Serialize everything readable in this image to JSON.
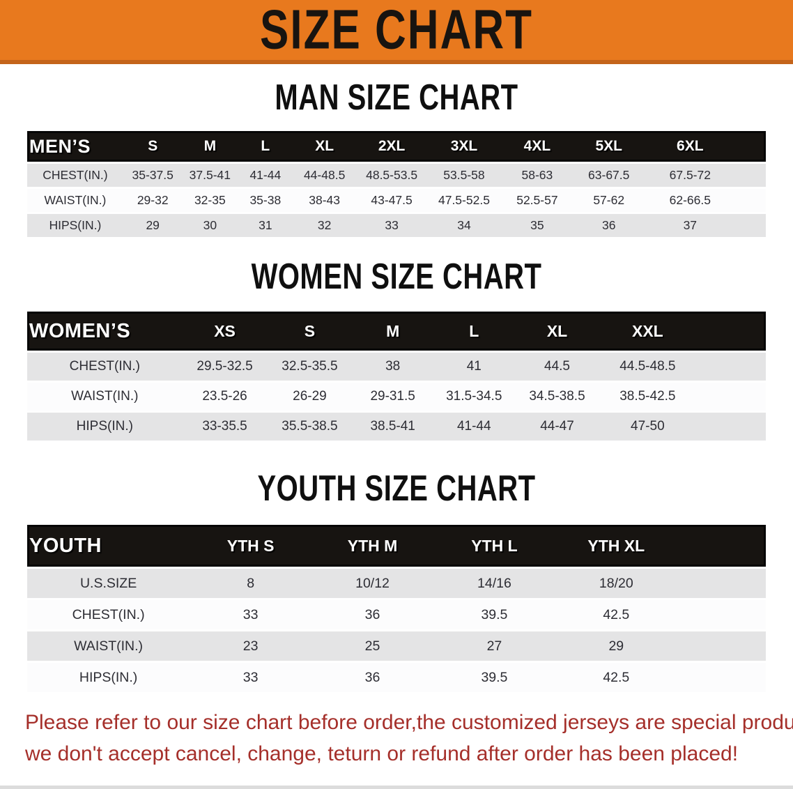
{
  "banner": {
    "title": "SIZE CHART"
  },
  "colors": {
    "banner_orange": "#e8791e",
    "banner_bottom_edge": "#c4641a",
    "table_header_black": "#171411",
    "row_gray": "#e4e4e5",
    "row_white": "#fcfcfd",
    "disclaimer_red": "#a52f2a"
  },
  "sections": [
    {
      "id": "men",
      "title": "MAN SIZE CHART",
      "header_label": "MEN’S",
      "columns": [
        "S",
        "M",
        "L",
        "XL",
        "2XL",
        "3XL",
        "4XL",
        "5XL",
        "6XL"
      ],
      "rows": [
        {
          "label": "CHEST(IN.)",
          "values": [
            "35-37.5",
            "37.5-41",
            "41-44",
            "44-48.5",
            "48.5-53.5",
            "53.5-58",
            "58-63",
            "63-67.5",
            "67.5-72"
          ]
        },
        {
          "label": "WAIST(IN.)",
          "values": [
            "29-32",
            "32-35",
            "35-38",
            "38-43",
            "43-47.5",
            "47.5-52.5",
            "52.5-57",
            "57-62",
            "62-66.5"
          ]
        },
        {
          "label": "HIPS(IN.)",
          "values": [
            "29",
            "30",
            "31",
            "32",
            "33",
            "34",
            "35",
            "36",
            "37"
          ]
        }
      ]
    },
    {
      "id": "women",
      "title": "WOMEN SIZE CHART",
      "header_label": "WOMEN’S",
      "columns": [
        "XS",
        "S",
        "M",
        "L",
        "XL",
        "XXL"
      ],
      "rows": [
        {
          "label": "CHEST(IN.)",
          "values": [
            "29.5-32.5",
            "32.5-35.5",
            "38",
            "41",
            "44.5",
            "44.5-48.5"
          ]
        },
        {
          "label": "WAIST(IN.)",
          "values": [
            "23.5-26",
            "26-29",
            "29-31.5",
            "31.5-34.5",
            "34.5-38.5",
            "38.5-42.5"
          ]
        },
        {
          "label": "HIPS(IN.)",
          "values": [
            "33-35.5",
            "35.5-38.5",
            "38.5-41",
            "41-44",
            "44-47",
            "47-50"
          ]
        }
      ]
    },
    {
      "id": "youth",
      "title": "YOUTH SIZE CHART",
      "header_label": "YOUTH",
      "columns": [
        "YTH S",
        "YTH M",
        "YTH L",
        "YTH XL"
      ],
      "rows": [
        {
          "label": "U.S.SIZE",
          "values": [
            "8",
            "10/12",
            "14/16",
            "18/20"
          ]
        },
        {
          "label": "CHEST(IN.)",
          "values": [
            "33",
            "36",
            "39.5",
            "42.5"
          ]
        },
        {
          "label": "WAIST(IN.)",
          "values": [
            "23",
            "25",
            "27",
            "29"
          ]
        },
        {
          "label": "HIPS(IN.)",
          "values": [
            "33",
            "36",
            "39.5",
            "42.5"
          ]
        }
      ]
    }
  ],
  "footer": {
    "line1": "Please refer to our size chart before order,the customized jerseys are special products,",
    "line2": "we don't accept cancel, change, teturn or refund after order has been placed!"
  }
}
